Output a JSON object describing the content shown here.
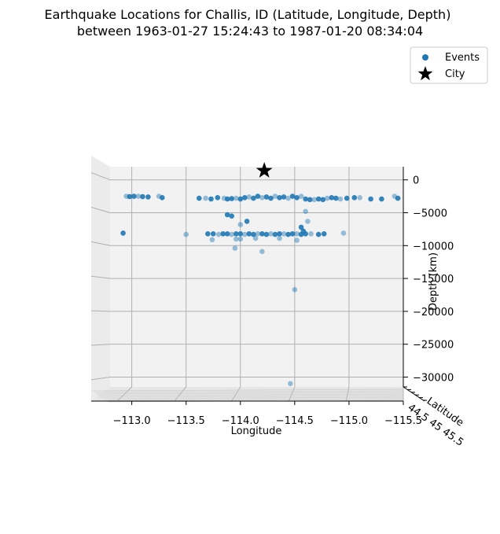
{
  "chart_data": {
    "type": "scatter",
    "title": "Earthquake Locations for Challis, ID (Latitude, Longitude, Depth)",
    "subtitle": "between 1963-01-27 15:24:43 to 1987-01-20 08:34:04",
    "xlabel": "Longitude",
    "ylabel": "Latitude",
    "zlabel": "Depth (km)",
    "xlim": [
      -112.8,
      -115.5
    ],
    "zlim": [
      -31500,
      2000
    ],
    "x_ticks": [
      -113.0,
      -113.5,
      -114.0,
      -114.5,
      -115.0,
      -115.5
    ],
    "x_tick_labels": [
      "−113.0",
      "−113.5",
      "−114.0",
      "−114.5",
      "−115.0",
      "−115.5"
    ],
    "z_ticks": [
      0,
      -5000,
      -10000,
      -15000,
      -20000,
      -25000,
      -30000
    ],
    "z_tick_labels": [
      "0",
      "−5000",
      "−10000",
      "−15000",
      "−20000",
      "−25000",
      "−30000"
    ],
    "y_tick_labels_overlapping": "44.5 45 45.5",
    "grid": true,
    "legend_position": "top-right",
    "series": [
      {
        "name": "Events",
        "marker": "circle",
        "color": "#1f77b4",
        "x": [
          -112.95,
          -112.98,
          -113.02,
          -113.06,
          -113.1,
          -113.15,
          -113.25,
          -113.28,
          -113.62,
          -113.68,
          -113.73,
          -113.79,
          -113.85,
          -113.88,
          -113.92,
          -113.96,
          -114.0,
          -114.04,
          -114.08,
          -114.12,
          -114.16,
          -114.2,
          -114.24,
          -114.28,
          -114.32,
          -114.36,
          -114.4,
          -114.44,
          -114.48,
          -114.52,
          -114.56,
          -114.6,
          -114.64,
          -114.68,
          -114.72,
          -114.76,
          -114.8,
          -114.84,
          -114.88,
          -114.92,
          -114.98,
          -115.05,
          -115.1,
          -115.2,
          -115.3,
          -115.42,
          -115.45,
          -112.92,
          -113.5,
          -113.7,
          -113.75,
          -113.8,
          -113.84,
          -113.88,
          -113.92,
          -113.96,
          -114.0,
          -114.04,
          -114.08,
          -114.12,
          -114.16,
          -114.2,
          -114.24,
          -114.28,
          -114.32,
          -114.36,
          -114.4,
          -114.44,
          -114.48,
          -114.52,
          -114.56,
          -114.6,
          -114.65,
          -114.72,
          -114.77,
          -114.95,
          -113.88,
          -113.92,
          -114.0,
          -114.06,
          -113.74,
          -113.96,
          -114.0,
          -114.14,
          -114.36,
          -114.52,
          -114.56,
          -114.62,
          -114.58,
          -114.5,
          -113.95,
          -114.2,
          -114.46,
          -114.6
        ],
        "y_depth": [
          -2500,
          -2550,
          -2500,
          -2500,
          -2550,
          -2600,
          -2500,
          -2700,
          -2800,
          -2800,
          -2900,
          -2700,
          -2800,
          -2900,
          -2850,
          -2800,
          -2900,
          -2700,
          -2600,
          -2800,
          -2500,
          -2700,
          -2600,
          -2800,
          -2500,
          -2700,
          -2600,
          -2800,
          -2500,
          -2700,
          -2500,
          -2900,
          -3000,
          -3000,
          -2900,
          -3000,
          -2800,
          -2700,
          -2800,
          -2900,
          -2800,
          -2700,
          -2700,
          -2900,
          -2900,
          -2500,
          -2800,
          -8100,
          -8300,
          -8200,
          -8200,
          -8300,
          -8200,
          -8200,
          -8300,
          -8200,
          -8200,
          -8300,
          -8200,
          -8300,
          -8200,
          -8200,
          -8300,
          -8200,
          -8300,
          -8200,
          -8200,
          -8300,
          -8200,
          -8200,
          -8300,
          -8200,
          -8200,
          -8300,
          -8200,
          -8100,
          -5300,
          -5500,
          -6800,
          -6300,
          -9100,
          -9000,
          -9000,
          -8900,
          -8900,
          -9200,
          -7200,
          -6300,
          -7800,
          -16700,
          -10400,
          -10900,
          -31000,
          -4800
        ]
      },
      {
        "name": "City",
        "marker": "star",
        "color": "#000000",
        "x": [
          -114.22
        ],
        "y_depth": [
          1400
        ]
      }
    ]
  }
}
